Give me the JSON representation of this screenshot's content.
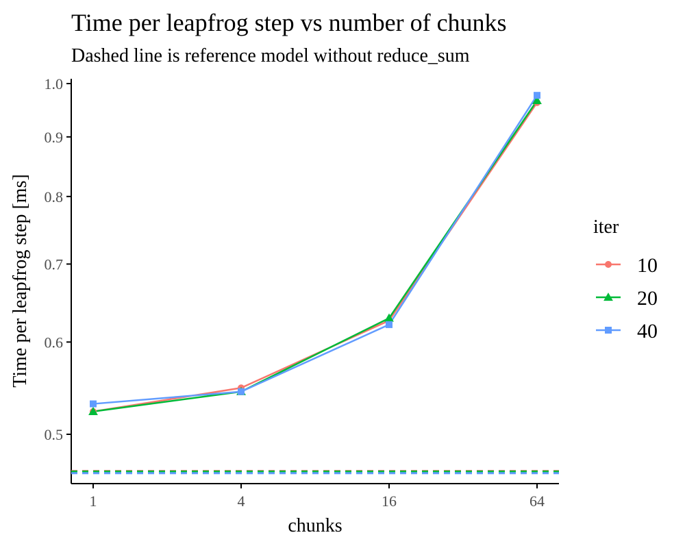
{
  "chart_data": {
    "type": "line",
    "title": "Time per leapfrog step vs number of chunks",
    "subtitle": "Dashed line is reference model without reduce_sum",
    "xlabel": "chunks",
    "ylabel": "Time per leapfrog step [ms]",
    "x_scale": "log2",
    "y_scale": "log",
    "x": [
      1,
      4,
      16,
      64
    ],
    "x_tick_labels": [
      "1",
      "4",
      "16",
      "64"
    ],
    "y_ticks": [
      0.5,
      0.6,
      0.7,
      0.8,
      0.9,
      1.0
    ],
    "y_tick_labels": [
      "0.5",
      "0.6",
      "0.7",
      "0.8",
      "0.9",
      "1.0"
    ],
    "ylim": [
      0.45,
      1.0
    ],
    "grid": false,
    "legend": {
      "title": "iter",
      "placement": "right"
    },
    "series": [
      {
        "name": "10",
        "color": "#F8766D",
        "marker": "circle",
        "values": [
          0.523,
          0.548,
          0.626,
          0.963
        ],
        "reference": 0.465
      },
      {
        "name": "20",
        "color": "#00BA38",
        "marker": "triangle",
        "values": [
          0.523,
          0.544,
          0.629,
          0.967
        ],
        "reference": 0.4645
      },
      {
        "name": "40",
        "color": "#619CFF",
        "marker": "square",
        "values": [
          0.531,
          0.544,
          0.621,
          0.977
        ],
        "reference": 0.463
      }
    ]
  }
}
